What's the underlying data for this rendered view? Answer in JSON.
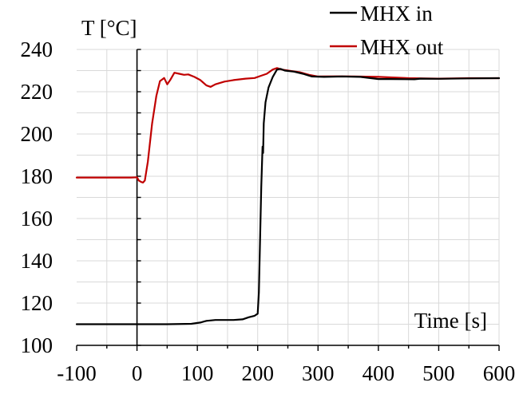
{
  "chart_data": {
    "type": "line",
    "xlabel": "Time [s]",
    "ylabel": "T [°C]",
    "xlim": [
      -100,
      600
    ],
    "ylim": [
      100,
      240
    ],
    "x_ticks": [
      -100,
      0,
      100,
      200,
      300,
      400,
      500,
      600
    ],
    "y_ticks": [
      100,
      120,
      140,
      160,
      180,
      200,
      220,
      240
    ],
    "x_minor_step": 50,
    "y_minor_step": 10,
    "grid": true,
    "y_axis_crosses_at_x": 0,
    "legend_position": "top-right",
    "series": [
      {
        "name": "MHX in",
        "color": "#000000",
        "points": [
          [
            -100,
            110
          ],
          [
            -50,
            110
          ],
          [
            0,
            110
          ],
          [
            50,
            110
          ],
          [
            90,
            110.2
          ],
          [
            105,
            110.8
          ],
          [
            115,
            111.6
          ],
          [
            130,
            112
          ],
          [
            160,
            112
          ],
          [
            175,
            112.3
          ],
          [
            185,
            113.3
          ],
          [
            195,
            114
          ],
          [
            200,
            115
          ],
          [
            202,
            125
          ],
          [
            204,
            150
          ],
          [
            206,
            175
          ],
          [
            208,
            194
          ],
          [
            209,
            191
          ],
          [
            210,
            205
          ],
          [
            213,
            215
          ],
          [
            218,
            222
          ],
          [
            225,
            227
          ],
          [
            232,
            230.5
          ],
          [
            238,
            230.8
          ],
          [
            245,
            230
          ],
          [
            260,
            229.5
          ],
          [
            275,
            228.5
          ],
          [
            290,
            227.2
          ],
          [
            310,
            227
          ],
          [
            340,
            227.2
          ],
          [
            370,
            227
          ],
          [
            400,
            226
          ],
          [
            420,
            226
          ],
          [
            460,
            225.9
          ],
          [
            470,
            226.2
          ],
          [
            500,
            226.1
          ],
          [
            550,
            226.3
          ],
          [
            600,
            226.4
          ]
        ]
      },
      {
        "name": "MHX out",
        "color": "#c00000",
        "points": [
          [
            -100,
            179.4
          ],
          [
            -50,
            179.4
          ],
          [
            -10,
            179.4
          ],
          [
            0,
            179.5
          ],
          [
            3,
            178
          ],
          [
            7,
            177.3
          ],
          [
            10,
            177
          ],
          [
            13,
            178
          ],
          [
            18,
            187
          ],
          [
            25,
            205
          ],
          [
            32,
            218
          ],
          [
            38,
            225
          ],
          [
            45,
            226.5
          ],
          [
            50,
            223.5
          ],
          [
            55,
            225.5
          ],
          [
            62,
            229
          ],
          [
            70,
            228.5
          ],
          [
            78,
            228
          ],
          [
            85,
            228.2
          ],
          [
            95,
            227
          ],
          [
            105,
            225.5
          ],
          [
            115,
            223
          ],
          [
            122,
            222.3
          ],
          [
            130,
            223.5
          ],
          [
            145,
            224.8
          ],
          [
            160,
            225.5
          ],
          [
            180,
            226.2
          ],
          [
            195,
            226.5
          ],
          [
            205,
            227.5
          ],
          [
            215,
            228.5
          ],
          [
            225,
            230.5
          ],
          [
            232,
            231.2
          ],
          [
            240,
            230.5
          ],
          [
            255,
            229.8
          ],
          [
            270,
            229.2
          ],
          [
            285,
            228
          ],
          [
            300,
            227.2
          ],
          [
            330,
            227.3
          ],
          [
            360,
            227.2
          ],
          [
            400,
            227
          ],
          [
            450,
            226.4
          ],
          [
            500,
            226.2
          ],
          [
            550,
            226.4
          ],
          [
            600,
            226.4
          ]
        ]
      }
    ]
  }
}
